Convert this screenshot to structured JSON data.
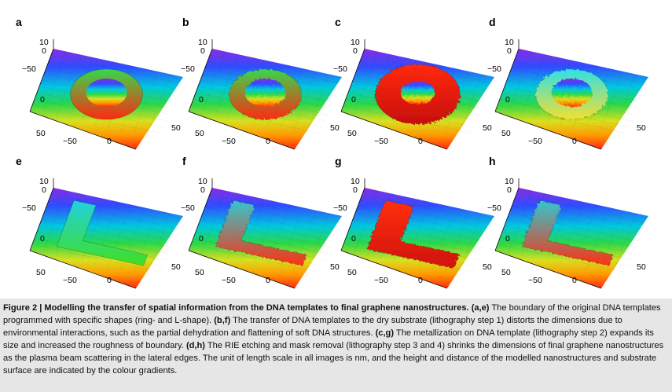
{
  "panels": [
    {
      "id": "a",
      "shape": "ring",
      "style": "smooth"
    },
    {
      "id": "b",
      "shape": "ring",
      "style": "rough"
    },
    {
      "id": "c",
      "shape": "ring",
      "style": "metal"
    },
    {
      "id": "d",
      "shape": "ring",
      "style": "etched"
    },
    {
      "id": "e",
      "shape": "L",
      "style": "smooth"
    },
    {
      "id": "f",
      "shape": "L",
      "style": "rough"
    },
    {
      "id": "g",
      "shape": "L",
      "style": "metal"
    },
    {
      "id": "h",
      "shape": "L",
      "style": "etched"
    }
  ],
  "ticks": {
    "z_top": "10",
    "z_zero": "0",
    "left_minus": "−50",
    "left_zero": "0",
    "left_plus": "50",
    "bottom_minus": "−50",
    "bottom_zero": "0",
    "right_plus": "50"
  },
  "caption": {
    "figure_label": "Figure 2 | Modelling the transfer of spatial information from the DNA templates to final graphene nanostructures.",
    "ae_ref": "(a,e)",
    "ae_text": "The boundary of the original DNA templates programmed with specific shapes (ring- and L-shape).",
    "bf_ref": "(b,f)",
    "bf_text": "The transfer of DNA templates to the dry substrate (lithography step 1) distorts the dimensions due to environmental interactions, such as the partial dehydration and flattening of soft DNA structures.",
    "cg_ref": "(c,g)",
    "cg_text": "The metallization on DNA template (lithography step 2) expands its size and increased the roughness of boundary.",
    "dh_ref": "(d,h)",
    "dh_text": "The RIE etching and mask removal (lithography step 3 and 4) shrinks the dimensions of final graphene nanostructures as the plasma beam scattering in the lateral edges. The unit of length scale in all images is nm, and the height and distance of the modelled nanostructures and substrate surface are indicated by the colour gradients."
  }
}
